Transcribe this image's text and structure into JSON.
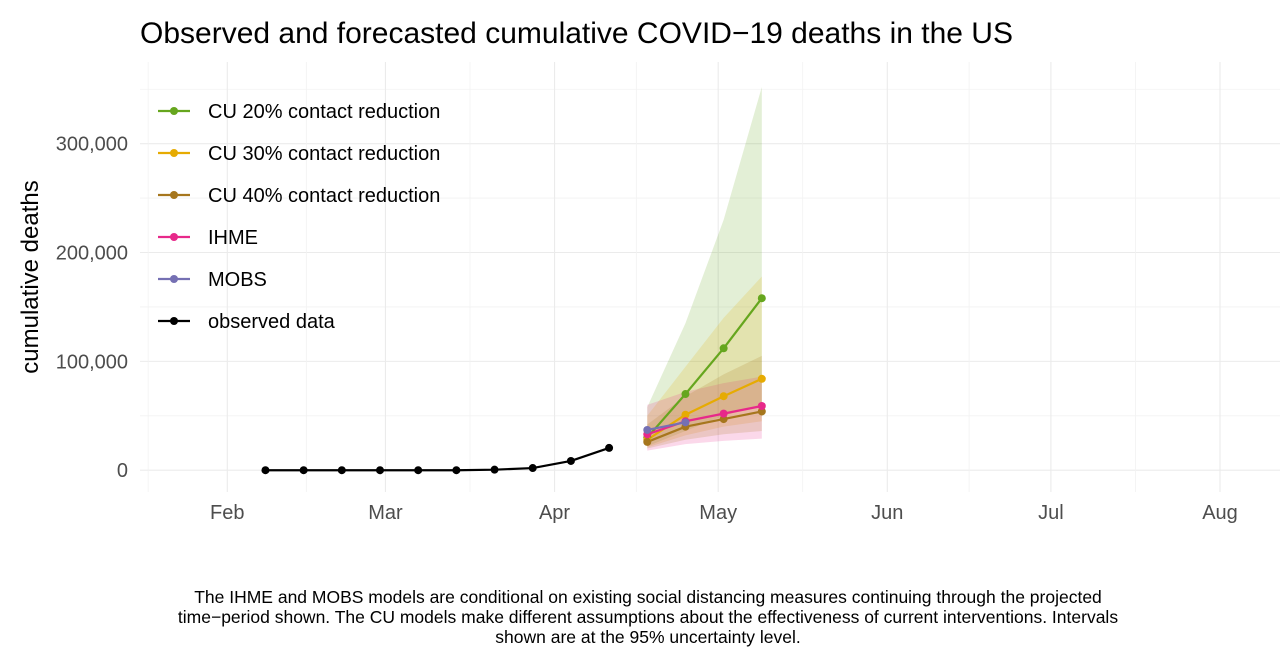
{
  "chart_data": {
    "type": "line",
    "title": "Observed and forecasted cumulative COVID−19 deaths in the US",
    "xlabel": "",
    "ylabel": "cumulative deaths",
    "x_range": [
      "2020-01-16",
      "2020-08-12"
    ],
    "ylim": [
      -20000,
      375000
    ],
    "x_ticks": [
      {
        "date": "2020-02-01",
        "label": "Feb"
      },
      {
        "date": "2020-03-01",
        "label": "Mar"
      },
      {
        "date": "2020-04-01",
        "label": "Apr"
      },
      {
        "date": "2020-05-01",
        "label": "May"
      },
      {
        "date": "2020-06-01",
        "label": "Jun"
      },
      {
        "date": "2020-07-01",
        "label": "Jul"
      },
      {
        "date": "2020-08-01",
        "label": "Aug"
      }
    ],
    "y_ticks": [
      {
        "value": 0,
        "label": "0"
      },
      {
        "value": 100000,
        "label": "100,000"
      },
      {
        "value": 200000,
        "label": "200,000"
      },
      {
        "value": 300000,
        "label": "300,000"
      }
    ],
    "grid": true,
    "legend_position": "top-left",
    "series": [
      {
        "name": "CU 20% contact reduction",
        "color": "#66a61e",
        "x": [
          "2020-04-18",
          "2020-04-25",
          "2020-05-02",
          "2020-05-09"
        ],
        "y": [
          30000,
          70000,
          112000,
          158000
        ],
        "lower": [
          22000,
          36000,
          50000,
          60000
        ],
        "upper": [
          58000,
          135000,
          230000,
          352000
        ]
      },
      {
        "name": "CU 30% contact reduction",
        "color": "#e6ab02",
        "x": [
          "2020-04-18",
          "2020-04-25",
          "2020-05-02",
          "2020-05-09"
        ],
        "y": [
          28000,
          51000,
          68000,
          84000
        ],
        "lower": [
          21000,
          32000,
          40000,
          45000
        ],
        "upper": [
          50000,
          95000,
          140000,
          178000
        ]
      },
      {
        "name": "CU 40% contact reduction",
        "color": "#a6761d",
        "x": [
          "2020-04-18",
          "2020-04-25",
          "2020-05-02",
          "2020-05-09"
        ],
        "y": [
          26000,
          40000,
          47000,
          54000
        ],
        "lower": [
          20000,
          28000,
          33000,
          36000
        ],
        "upper": [
          42000,
          68000,
          88000,
          105000
        ]
      },
      {
        "name": "IHME",
        "color": "#e7298a",
        "x": [
          "2020-04-18",
          "2020-04-25",
          "2020-05-02",
          "2020-05-09"
        ],
        "y": [
          33000,
          45000,
          52000,
          59000
        ],
        "lower": [
          18000,
          24000,
          27000,
          29000
        ],
        "upper": [
          60000,
          72000,
          80000,
          86000
        ]
      },
      {
        "name": "MOBS",
        "color": "#7570b3",
        "x": [
          "2020-04-18",
          "2020-04-25"
        ],
        "y": [
          37000,
          44000
        ]
      },
      {
        "name": "observed data",
        "color": "#000000",
        "x": [
          "2020-02-08",
          "2020-02-15",
          "2020-02-22",
          "2020-02-29",
          "2020-03-07",
          "2020-03-14",
          "2020-03-21",
          "2020-03-28",
          "2020-04-04",
          "2020-04-11"
        ],
        "y": [
          0,
          0,
          0,
          0,
          0,
          0,
          500,
          2000,
          8500,
          20500
        ]
      }
    ]
  },
  "caption_lines": [
    "The IHME and MOBS models are conditional on existing social distancing measures continuing through the projected",
    "time−period shown. The CU models make different assumptions about the effectiveness of current interventions. Intervals",
    "shown are at the 95% uncertainty level."
  ]
}
